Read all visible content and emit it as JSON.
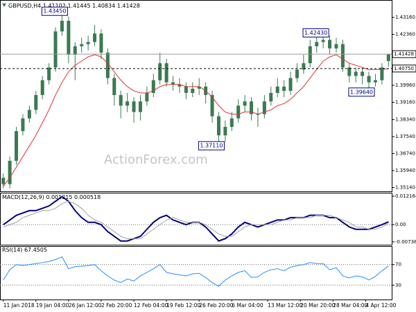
{
  "chart_data": [
    {
      "type": "candlestick",
      "title": "GBPUSD,H4",
      "candle_color": "#3a7a52",
      "show_last_price": true,
      "watermark": "ActionForex.com",
      "open": [
        1.356,
        1.353,
        1.364,
        1.378,
        1.384,
        1.388,
        1.395,
        1.402,
        1.408,
        1.425,
        1.43,
        1.414,
        1.418,
        1.419,
        1.42,
        1.424,
        1.415,
        1.403,
        1.395,
        1.39,
        1.392,
        1.387,
        1.392,
        1.396,
        1.402,
        1.41,
        1.401,
        1.4,
        1.399,
        1.396,
        1.398,
        1.399,
        1.395,
        1.385,
        1.376,
        1.38,
        1.384,
        1.39,
        1.392,
        1.386,
        1.386,
        1.392,
        1.396,
        1.399,
        1.397,
        1.403,
        1.407,
        1.41,
        1.418,
        1.42,
        1.421,
        1.417,
        1.419,
        1.408,
        1.404,
        1.406,
        1.404,
        1.401,
        1.402,
        1.41102
      ],
      "high": [
        1.358,
        1.366,
        1.38,
        1.386,
        1.39,
        1.397,
        1.404,
        1.41,
        1.427,
        1.4345,
        1.432,
        1.42,
        1.422,
        1.423,
        1.428,
        1.426,
        1.417,
        1.405,
        1.397,
        1.396,
        1.394,
        1.395,
        1.399,
        1.405,
        1.415,
        1.412,
        1.404,
        1.403,
        1.401,
        1.401,
        1.403,
        1.401,
        1.397,
        1.387,
        1.383,
        1.387,
        1.393,
        1.395,
        1.394,
        1.389,
        1.395,
        1.399,
        1.403,
        1.402,
        1.406,
        1.41,
        1.414,
        1.421,
        1.423,
        1.4243,
        1.423,
        1.422,
        1.421,
        1.41,
        1.408,
        1.408,
        1.406,
        1.405,
        1.41,
        1.41445
      ],
      "low": [
        1.351,
        1.351,
        1.362,
        1.376,
        1.382,
        1.386,
        1.393,
        1.4,
        1.406,
        1.423,
        1.41,
        1.402,
        1.415,
        1.416,
        1.418,
        1.412,
        1.4,
        1.39,
        1.384,
        1.387,
        1.382,
        1.383,
        1.39,
        1.394,
        1.4,
        1.399,
        1.397,
        1.396,
        1.393,
        1.394,
        1.395,
        1.391,
        1.382,
        1.3711,
        1.373,
        1.378,
        1.382,
        1.387,
        1.383,
        1.38,
        1.384,
        1.39,
        1.394,
        1.394,
        1.395,
        1.401,
        1.405,
        1.408,
        1.415,
        1.417,
        1.414,
        1.415,
        1.406,
        1.401,
        1.401,
        1.4,
        1.3964,
        1.399,
        1.4,
        1.40834
      ],
      "close": [
        1.353,
        1.364,
        1.378,
        1.384,
        1.388,
        1.395,
        1.402,
        1.408,
        1.425,
        1.43,
        1.414,
        1.418,
        1.419,
        1.42,
        1.424,
        1.415,
        1.403,
        1.395,
        1.39,
        1.392,
        1.387,
        1.392,
        1.396,
        1.402,
        1.41,
        1.401,
        1.4,
        1.399,
        1.396,
        1.398,
        1.399,
        1.395,
        1.385,
        1.376,
        1.38,
        1.384,
        1.39,
        1.392,
        1.386,
        1.386,
        1.392,
        1.396,
        1.399,
        1.397,
        1.403,
        1.407,
        1.41,
        1.418,
        1.42,
        1.421,
        1.417,
        1.419,
        1.408,
        1.404,
        1.406,
        1.404,
        1.401,
        1.402,
        1.408,
        1.41428
      ],
      "ma": {
        "color": "#e03030",
        "values": [
          1.352,
          1.356,
          1.361,
          1.366,
          1.371,
          1.376,
          1.382,
          1.388,
          1.395,
          1.401,
          1.406,
          1.409,
          1.411,
          1.413,
          1.414,
          1.413,
          1.41,
          1.406,
          1.402,
          1.399,
          1.397,
          1.396,
          1.396,
          1.397,
          1.399,
          1.4,
          1.4,
          1.4,
          1.399,
          1.399,
          1.399,
          1.397,
          1.394,
          1.39,
          1.387,
          1.386,
          1.386,
          1.387,
          1.387,
          1.386,
          1.387,
          1.388,
          1.39,
          1.391,
          1.393,
          1.396,
          1.399,
          1.403,
          1.407,
          1.411,
          1.413,
          1.414,
          1.412,
          1.41,
          1.409,
          1.408,
          1.407,
          1.407,
          1.407,
          1.4075
        ]
      },
      "price_lines": [
        {
          "value": 1.4075,
          "label": "1.40750"
        }
      ],
      "annotations": [
        {
          "x": 9,
          "value": 1.4345,
          "label": "1.43450"
        },
        {
          "x": 49,
          "value": 1.4243,
          "label": "1.42430"
        },
        {
          "x": 33,
          "value": 1.3711,
          "label": "1.37110"
        },
        {
          "x": 56,
          "value": 1.3964,
          "label": "1.39640"
        }
      ],
      "xlim": [
        -0.5,
        59.5
      ],
      "ylim": [
        1.3496,
        1.4398
      ],
      "yticks": [
        {
          "value": 1.4316,
          "label": "1.43160"
        },
        {
          "value": 1.4236,
          "label": "1.42360"
        },
        {
          "value": 1.3996,
          "label": "1.39960"
        },
        {
          "value": 1.3916,
          "label": "1.39160"
        },
        {
          "value": 1.3834,
          "label": "1.38340"
        },
        {
          "value": 1.3754,
          "label": "1.37540"
        },
        {
          "value": 1.3674,
          "label": "1.36740"
        },
        {
          "value": 1.3594,
          "label": "1.35940"
        },
        {
          "value": 1.3514,
          "label": "1.35140"
        }
      ]
    },
    {
      "type": "line",
      "title": "MACD(12,26,9)",
      "zero_line": true,
      "series": [
        {
          "color": "#000080",
          "line_width": 2,
          "values": [
            0,
            0.002,
            0.004,
            0.005,
            0.006,
            0.006,
            0.007,
            0.008,
            0.01,
            0.012,
            0.01,
            0.006,
            0.003,
            0.001,
            0.001,
            0,
            -0.003,
            -0.005,
            -0.007,
            -0.007,
            -0.006,
            -0.005,
            -0.002,
            0.001,
            0.003,
            0.004,
            0.002,
            0.001,
            0,
            0.001,
            0.001,
            -0.001,
            -0.004,
            -0.007,
            -0.006,
            -0.004,
            -0.001,
            0.001,
            0,
            -0.001,
            0,
            0.001,
            0.002,
            0.002,
            0.003,
            0.003,
            0.003,
            0.004,
            0.004,
            0.004,
            0.003,
            0.003,
            0.001,
            -0.001,
            -0.002,
            -0.002,
            -0.002,
            -0.001,
            0,
            0.001215
          ]
        },
        {
          "color": "#a0a0a0",
          "line_width": 1,
          "values": [
            -0.001,
            0,
            0.001,
            0.003,
            0.004,
            0.005,
            0.006,
            0.006,
            0.007,
            0.009,
            0.01,
            0.009,
            0.007,
            0.004,
            0.002,
            0.001,
            -0.001,
            -0.003,
            -0.005,
            -0.006,
            -0.006,
            -0.006,
            -0.004,
            -0.002,
            0,
            0.002,
            0.003,
            0.002,
            0.001,
            0.001,
            0.001,
            0,
            -0.002,
            -0.004,
            -0.005,
            -0.005,
            -0.003,
            -0.001,
            0,
            0,
            0,
            0,
            0.001,
            0.002,
            0.002,
            0.003,
            0.003,
            0.003,
            0.004,
            0.004,
            0.004,
            0.003,
            0.002,
            0.001,
            -0.001,
            -0.001,
            -0.002,
            -0.002,
            -0.001,
            0.000518
          ]
        }
      ],
      "xlim": [
        -0.5,
        59.5
      ],
      "ylim": [
        -0.0086,
        0.01365
      ],
      "yticks": [
        0.012164,
        {
          "value": 0,
          "label": "0.00"
        },
        -0.007384
      ]
    },
    {
      "type": "line",
      "title": "RSI(14)",
      "grid": "dotted",
      "series": [
        {
          "color": "#1e90ff",
          "line_width": 1,
          "values": [
            40,
            60,
            70,
            68,
            70,
            72,
            74,
            76,
            80,
            85,
            62,
            66,
            67,
            68,
            70,
            58,
            48,
            40,
            35,
            42,
            38,
            48,
            55,
            62,
            70,
            55,
            52,
            50,
            48,
            52,
            53,
            45,
            35,
            28,
            40,
            48,
            55,
            58,
            45,
            46,
            55,
            60,
            62,
            58,
            65,
            68,
            70,
            74,
            72,
            72,
            60,
            64,
            48,
            44,
            48,
            46,
            40,
            47,
            58,
            67.4505
          ]
        }
      ],
      "xlim": [
        -0.5,
        59.5
      ],
      "ylim": [
        2,
        106
      ],
      "yticks": [
        70,
        30
      ],
      "xticks": [
        {
          "value": 0,
          "label": "11 Jan 2018"
        },
        {
          "value": 5,
          "label": "19 Jan 04:00"
        },
        {
          "value": 10,
          "label": "26 Jan 12:00"
        },
        {
          "value": 15,
          "label": "2 Feb 20:00"
        },
        {
          "value": 20,
          "label": "12 Feb 04:00"
        },
        {
          "value": 25,
          "label": "19 Feb 12:00"
        },
        {
          "value": 30,
          "label": "26 Feb 20:00"
        },
        {
          "value": 35,
          "label": "6 Mar 04:00"
        },
        {
          "value": 40.5,
          "label": "13 Mar 12:00"
        },
        {
          "value": 45.5,
          "label": "20 Mar 20:00"
        },
        {
          "value": 50.5,
          "label": "28 Mar 04:00"
        },
        {
          "value": 55.5,
          "label": "4 Apr 12:00"
        }
      ]
    }
  ]
}
